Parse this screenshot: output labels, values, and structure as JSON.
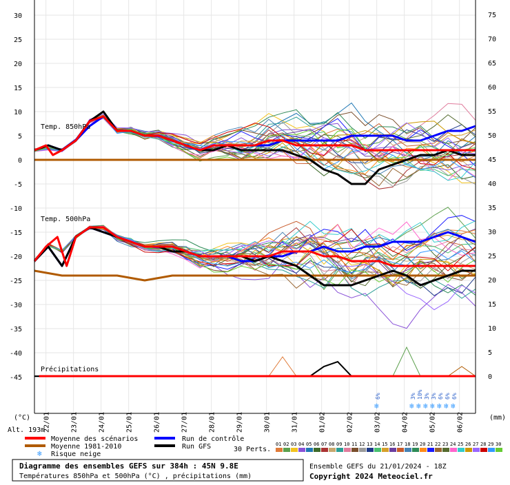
{
  "chart_data": {
    "type": "line",
    "left_axis": {
      "unit": "(°C)",
      "ticks": [
        30,
        25,
        20,
        15,
        10,
        5,
        0,
        -5,
        -10,
        -15,
        -20,
        -25,
        -30,
        -35,
        -40,
        -45
      ]
    },
    "right_axis": {
      "unit": "(mm)",
      "ticks": [
        75,
        70,
        65,
        60,
        55,
        50,
        45,
        40,
        35,
        30,
        25,
        20,
        15,
        10,
        5,
        0
      ]
    },
    "date_ticks": [
      "22/01",
      "23/01",
      "24/01",
      "25/01",
      "26/01",
      "27/01",
      "28/01",
      "29/01",
      "30/01",
      "31/01",
      "01/02",
      "02/02",
      "03/02",
      "04/02",
      "05/02",
      "06/02"
    ],
    "altitude": "Alt. 193m",
    "panels": [
      {
        "label": "Temp. 850hPa"
      },
      {
        "label": "Temp. 500hPa"
      },
      {
        "label": "Précipitations"
      }
    ],
    "series": [
      {
        "name": "Moyenne des scénarios",
        "color": "#ff0000",
        "t850": [
          [
            0,
            2
          ],
          [
            10,
            3
          ],
          [
            16,
            1
          ],
          [
            24,
            2
          ],
          [
            36,
            4
          ],
          [
            48,
            8
          ],
          [
            60,
            9
          ],
          [
            72,
            6
          ],
          [
            84,
            6
          ],
          [
            96,
            5
          ],
          [
            108,
            5
          ],
          [
            120,
            4
          ],
          [
            132,
            3
          ],
          [
            144,
            2
          ],
          [
            156,
            3
          ],
          [
            168,
            3
          ],
          [
            180,
            3
          ],
          [
            192,
            3
          ],
          [
            204,
            4
          ],
          [
            216,
            4
          ],
          [
            228,
            3
          ],
          [
            240,
            3
          ],
          [
            252,
            3
          ],
          [
            264,
            3
          ],
          [
            276,
            3
          ],
          [
            288,
            2
          ],
          [
            300,
            2
          ],
          [
            312,
            2
          ],
          [
            324,
            2
          ],
          [
            336,
            2
          ],
          [
            348,
            2
          ],
          [
            360,
            2
          ],
          [
            372,
            2
          ],
          [
            384,
            2
          ]
        ],
        "t500": [
          [
            0,
            -21
          ],
          [
            10,
            -18
          ],
          [
            20,
            -16
          ],
          [
            28,
            -22
          ],
          [
            36,
            -16
          ],
          [
            48,
            -14
          ],
          [
            60,
            -14
          ],
          [
            72,
            -16
          ],
          [
            84,
            -17
          ],
          [
            96,
            -18
          ],
          [
            108,
            -18
          ],
          [
            120,
            -18
          ],
          [
            132,
            -19
          ],
          [
            144,
            -20
          ],
          [
            156,
            -20
          ],
          [
            168,
            -20
          ],
          [
            180,
            -20
          ],
          [
            192,
            -20
          ],
          [
            204,
            -20
          ],
          [
            216,
            -19
          ],
          [
            228,
            -19
          ],
          [
            240,
            -19
          ],
          [
            252,
            -20
          ],
          [
            264,
            -20
          ],
          [
            276,
            -21
          ],
          [
            288,
            -21
          ],
          [
            300,
            -21
          ],
          [
            312,
            -22
          ],
          [
            324,
            -22
          ],
          [
            336,
            -22
          ],
          [
            348,
            -22
          ],
          [
            360,
            -22
          ],
          [
            372,
            -22
          ],
          [
            384,
            -22
          ]
        ]
      },
      {
        "name": "Moyenne 1981-2010",
        "color": "#b05a00",
        "t850": [
          [
            0,
            0
          ],
          [
            48,
            0
          ],
          [
            96,
            0
          ],
          [
            144,
            0
          ],
          [
            192,
            0
          ],
          [
            240,
            0
          ],
          [
            288,
            0
          ],
          [
            336,
            0
          ],
          [
            384,
            0
          ]
        ],
        "t500": [
          [
            0,
            -23
          ],
          [
            24,
            -24
          ],
          [
            48,
            -24
          ],
          [
            72,
            -24
          ],
          [
            96,
            -25
          ],
          [
            120,
            -24
          ],
          [
            144,
            -24
          ],
          [
            168,
            -24
          ],
          [
            192,
            -24
          ],
          [
            216,
            -24
          ],
          [
            240,
            -24
          ],
          [
            264,
            -24
          ],
          [
            288,
            -24
          ],
          [
            312,
            -24
          ],
          [
            336,
            -24
          ],
          [
            360,
            -24
          ],
          [
            384,
            -24
          ]
        ]
      },
      {
        "name": "Run de contrôle",
        "color": "#0000ff",
        "t850": [
          [
            0,
            2
          ],
          [
            12,
            3
          ],
          [
            24,
            2
          ],
          [
            36,
            4
          ],
          [
            48,
            7
          ],
          [
            60,
            9
          ],
          [
            72,
            6
          ],
          [
            84,
            6
          ],
          [
            96,
            5
          ],
          [
            108,
            5
          ],
          [
            120,
            4
          ],
          [
            132,
            3
          ],
          [
            144,
            2
          ],
          [
            156,
            3
          ],
          [
            168,
            3
          ],
          [
            180,
            3
          ],
          [
            192,
            3
          ],
          [
            204,
            3
          ],
          [
            216,
            4
          ],
          [
            228,
            4
          ],
          [
            240,
            4
          ],
          [
            252,
            4
          ],
          [
            264,
            4
          ],
          [
            276,
            5
          ],
          [
            288,
            5
          ],
          [
            300,
            5
          ],
          [
            312,
            5
          ],
          [
            324,
            4
          ],
          [
            336,
            4
          ],
          [
            348,
            5
          ],
          [
            360,
            6
          ],
          [
            372,
            6
          ],
          [
            384,
            7
          ]
        ],
        "t500": [
          [
            0,
            -21
          ],
          [
            12,
            -18
          ],
          [
            24,
            -22
          ],
          [
            36,
            -16
          ],
          [
            48,
            -14
          ],
          [
            60,
            -15
          ],
          [
            72,
            -16
          ],
          [
            84,
            -17
          ],
          [
            96,
            -18
          ],
          [
            108,
            -18
          ],
          [
            120,
            -18
          ],
          [
            132,
            -19
          ],
          [
            144,
            -20
          ],
          [
            156,
            -20
          ],
          [
            168,
            -20
          ],
          [
            180,
            -21
          ],
          [
            192,
            -21
          ],
          [
            204,
            -20
          ],
          [
            216,
            -20
          ],
          [
            228,
            -19
          ],
          [
            240,
            -19
          ],
          [
            252,
            -18
          ],
          [
            264,
            -19
          ],
          [
            276,
            -19
          ],
          [
            288,
            -18
          ],
          [
            300,
            -18
          ],
          [
            312,
            -17
          ],
          [
            324,
            -17
          ],
          [
            336,
            -17
          ],
          [
            348,
            -16
          ],
          [
            360,
            -15
          ],
          [
            372,
            -16
          ],
          [
            384,
            -17
          ]
        ]
      },
      {
        "name": "Run GFS",
        "color": "#000000",
        "t850": [
          [
            0,
            2
          ],
          [
            12,
            3
          ],
          [
            24,
            2
          ],
          [
            36,
            4
          ],
          [
            48,
            8
          ],
          [
            60,
            10
          ],
          [
            72,
            6
          ],
          [
            84,
            6
          ],
          [
            96,
            5
          ],
          [
            108,
            5
          ],
          [
            120,
            4
          ],
          [
            132,
            3
          ],
          [
            144,
            2
          ],
          [
            156,
            2
          ],
          [
            168,
            3
          ],
          [
            180,
            2
          ],
          [
            192,
            2
          ],
          [
            204,
            2
          ],
          [
            216,
            2
          ],
          [
            228,
            1
          ],
          [
            240,
            0
          ],
          [
            252,
            -2
          ],
          [
            264,
            -3
          ],
          [
            276,
            -5
          ],
          [
            288,
            -5
          ],
          [
            300,
            -2
          ],
          [
            312,
            -1
          ],
          [
            324,
            0
          ],
          [
            336,
            1
          ],
          [
            348,
            1
          ],
          [
            360,
            2
          ],
          [
            372,
            1
          ],
          [
            384,
            1
          ]
        ],
        "t500": [
          [
            0,
            -21
          ],
          [
            12,
            -18
          ],
          [
            24,
            -22
          ],
          [
            36,
            -16
          ],
          [
            48,
            -14
          ],
          [
            60,
            -15
          ],
          [
            72,
            -16
          ],
          [
            84,
            -17
          ],
          [
            96,
            -18
          ],
          [
            108,
            -18
          ],
          [
            120,
            -19
          ],
          [
            132,
            -19
          ],
          [
            144,
            -20
          ],
          [
            156,
            -20
          ],
          [
            168,
            -20
          ],
          [
            180,
            -20
          ],
          [
            192,
            -21
          ],
          [
            204,
            -20
          ],
          [
            216,
            -21
          ],
          [
            228,
            -22
          ],
          [
            240,
            -24
          ],
          [
            252,
            -26
          ],
          [
            264,
            -26
          ],
          [
            276,
            -26
          ],
          [
            288,
            -25
          ],
          [
            300,
            -24
          ],
          [
            312,
            -23
          ],
          [
            324,
            -24
          ],
          [
            336,
            -26
          ],
          [
            348,
            -25
          ],
          [
            360,
            -24
          ],
          [
            372,
            -23
          ],
          [
            384,
            -23
          ]
        ],
        "precip_mm": [
          [
            0,
            0
          ],
          [
            240,
            0
          ],
          [
            252,
            2
          ],
          [
            264,
            3
          ],
          [
            276,
            0
          ],
          [
            384,
            0
          ]
        ]
      }
    ],
    "snow_risk": [
      {
        "day": "03/02",
        "pct": "6%"
      },
      {
        "day": "04/02",
        "pct": "3%"
      },
      {
        "day": "04/02",
        "pct": "10%"
      },
      {
        "day": "04/02",
        "pct": "3%"
      },
      {
        "day": "05/02",
        "pct": "3%"
      },
      {
        "day": "05/02",
        "pct": "6%"
      },
      {
        "day": "05/02",
        "pct": "6%"
      },
      {
        "day": "06/02",
        "pct": "6%"
      }
    ]
  },
  "legend": {
    "mean": "Moyenne des scénarios",
    "climatology": "Moyenne 1981-2010",
    "snow": "Risque neige",
    "control": "Run de contrôle",
    "gfs": "Run GFS",
    "perts_label": "30 Perts.",
    "perts": [
      "01",
      "02",
      "03",
      "04",
      "05",
      "06",
      "07",
      "08",
      "09",
      "10",
      "11",
      "12",
      "13",
      "14",
      "15",
      "16",
      "17",
      "18",
      "19",
      "20",
      "21",
      "22",
      "23",
      "24",
      "25",
      "26",
      "27",
      "28",
      "29",
      "30"
    ],
    "pert_colors": [
      "#e07b39",
      "#5ca04d",
      "#f2c31f",
      "#8a52d8",
      "#1f77b4",
      "#3e6b2a",
      "#aa3333",
      "#c7a86f",
      "#2b9e95",
      "#e07b9c",
      "#7a4e2c",
      "#9b9b9b",
      "#1e3a8a",
      "#48c070",
      "#d6a02a",
      "#6b3fa0",
      "#c85a2a",
      "#4682b4",
      "#2e8b57",
      "#ff8c1a",
      "#1a1aff",
      "#996633",
      "#556b2f",
      "#ff66cc",
      "#33cccc",
      "#cc9900",
      "#9966ff",
      "#cc0000",
      "#3399ff",
      "#66cc33"
    ]
  },
  "footer": {
    "title": "Diagramme des ensembles GEFS sur 384h : 45N 9.8E",
    "subtitle": "Températures 850hPa et 500hPa (°C) , précipitations (mm)",
    "run": "Ensemble GEFS du 21/01/2024 - 18Z",
    "copyright": "Copyright 2024 Meteociel.fr"
  }
}
